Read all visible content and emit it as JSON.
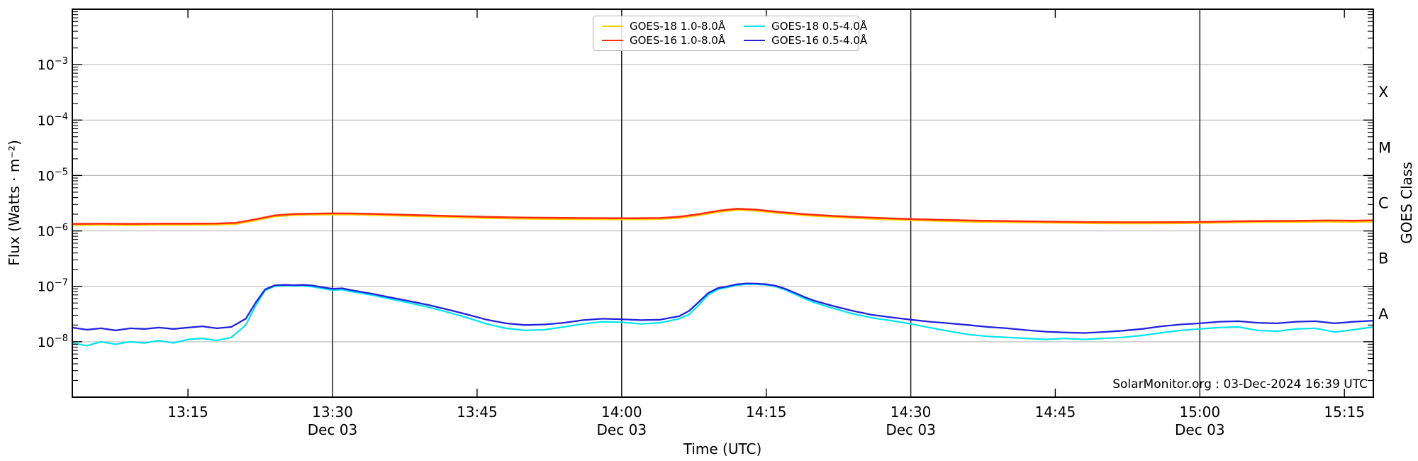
{
  "chart": {
    "kind": "GOES X-ray flux time series plot",
    "source_note": "SolarMonitor.org : 03-Dec-2024 16:39 UTC"
  },
  "chart_data": {
    "type": "line",
    "title": "",
    "watermark": "SolarMonitor.org : 03-Dec-2024 16:39 UTC",
    "x_axis": {
      "label": "Time (UTC)",
      "min": 3,
      "max": 138,
      "minutes_origin": "13:00 UTC, Dec 03",
      "start": "13:03",
      "end": "15:18",
      "date_label": "Dec 03",
      "ticks": [
        {
          "t": 15,
          "label": "13:15",
          "date": false
        },
        {
          "t": 30,
          "label": "13:30",
          "date": true
        },
        {
          "t": 45,
          "label": "13:45",
          "date": false
        },
        {
          "t": 60,
          "label": "14:00",
          "date": true
        },
        {
          "t": 75,
          "label": "14:15",
          "date": false
        },
        {
          "t": 90,
          "label": "14:30",
          "date": true
        },
        {
          "t": 105,
          "label": "14:45",
          "date": false
        },
        {
          "t": 120,
          "label": "15:00",
          "date": true
        },
        {
          "t": 135,
          "label": "15:15",
          "date": false
        }
      ]
    },
    "y_axis": {
      "label": "Flux (Watts · m⁻²)",
      "scale": "log",
      "min": 1e-09,
      "max": 0.01,
      "labeled_exponents": [
        -3,
        -4,
        -5,
        -6,
        -7,
        -8
      ],
      "grid": true
    },
    "right_axis": {
      "label": "GOES Class",
      "classes": [
        {
          "letter": "X",
          "from": 0.0001,
          "to": 0.001
        },
        {
          "letter": "M",
          "from": 1e-05,
          "to": 0.0001
        },
        {
          "letter": "C",
          "from": 1e-06,
          "to": 1e-05
        },
        {
          "letter": "B",
          "from": 1e-07,
          "to": 1e-06
        },
        {
          "letter": "A",
          "from": 1e-08,
          "to": 1e-07
        }
      ]
    },
    "legend_position": "top-center",
    "series": [
      {
        "name": "goes-18-long",
        "label": "GOES-18 1.0-8.0Å",
        "color": "#ffd000",
        "t": [
          3,
          6,
          9,
          12,
          15,
          18,
          20,
          22,
          24,
          26,
          28,
          30,
          32,
          34,
          37,
          40,
          43,
          46,
          49,
          52,
          55,
          58,
          61,
          64,
          66,
          68,
          70,
          72,
          74,
          76,
          79,
          82,
          85,
          88,
          91,
          94,
          97,
          100,
          103,
          106,
          109,
          112,
          115,
          118,
          121,
          124,
          127,
          130,
          133,
          136,
          138
        ],
        "flux": [
          1.27e-06,
          1.28e-06,
          1.27e-06,
          1.28e-06,
          1.28e-06,
          1.29e-06,
          1.33e-06,
          1.54e-06,
          1.81e-06,
          1.92e-06,
          1.95e-06,
          1.97e-06,
          1.96e-06,
          1.93e-06,
          1.87e-06,
          1.81e-06,
          1.75e-06,
          1.7e-06,
          1.66e-06,
          1.64e-06,
          1.62e-06,
          1.62e-06,
          1.61e-06,
          1.63e-06,
          1.71e-06,
          1.9e-06,
          2.19e-06,
          2.39e-06,
          2.3e-06,
          2.11e-06,
          1.9e-06,
          1.77e-06,
          1.67e-06,
          1.6e-06,
          1.54e-06,
          1.49e-06,
          1.45e-06,
          1.43e-06,
          1.41e-06,
          1.39e-06,
          1.37e-06,
          1.36e-06,
          1.36e-06,
          1.37e-06,
          1.39e-06,
          1.42e-06,
          1.44e-06,
          1.44e-06,
          1.46e-06,
          1.45e-06,
          1.47e-06
        ]
      },
      {
        "name": "goes-16-long",
        "label": "GOES-16 1.0-8.0Å",
        "color": "#ff2b0f",
        "t": [
          3,
          6,
          9,
          12,
          15,
          18,
          20,
          22,
          24,
          26,
          28,
          30,
          32,
          34,
          37,
          40,
          43,
          46,
          49,
          52,
          55,
          58,
          61,
          64,
          66,
          68,
          70,
          72,
          74,
          76,
          79,
          82,
          85,
          88,
          91,
          94,
          97,
          100,
          103,
          106,
          109,
          112,
          115,
          118,
          121,
          124,
          127,
          130,
          133,
          136,
          138
        ],
        "flux": [
          1.34e-06,
          1.35e-06,
          1.34e-06,
          1.35e-06,
          1.35e-06,
          1.36e-06,
          1.4e-06,
          1.62e-06,
          1.9e-06,
          2.02e-06,
          2.05e-06,
          2.07e-06,
          2.06e-06,
          2.03e-06,
          1.97e-06,
          1.9e-06,
          1.84e-06,
          1.79e-06,
          1.75e-06,
          1.73e-06,
          1.71e-06,
          1.7e-06,
          1.69e-06,
          1.71e-06,
          1.8e-06,
          2e-06,
          2.3e-06,
          2.52e-06,
          2.42e-06,
          2.22e-06,
          2e-06,
          1.86e-06,
          1.76e-06,
          1.68e-06,
          1.62e-06,
          1.57e-06,
          1.53e-06,
          1.5e-06,
          1.48e-06,
          1.46e-06,
          1.44e-06,
          1.43e-06,
          1.43e-06,
          1.44e-06,
          1.46e-06,
          1.49e-06,
          1.51e-06,
          1.52e-06,
          1.54e-06,
          1.53e-06,
          1.55e-06
        ]
      },
      {
        "name": "goes-18-short",
        "label": "GOES-18 0.5-4.0Å",
        "color": "#00e4ee",
        "t": [
          3,
          4.5,
          6,
          7.5,
          9,
          10.5,
          12,
          13.5,
          15,
          16.5,
          18,
          19.5,
          21,
          22,
          23,
          24,
          25,
          26,
          27,
          28,
          29,
          30,
          31,
          32,
          34,
          36,
          38,
          40,
          42,
          44,
          46,
          48,
          50,
          52,
          54,
          56,
          58,
          60,
          62,
          64,
          66,
          67,
          68,
          69,
          70,
          71,
          72,
          73,
          74,
          75,
          76,
          77,
          78,
          79,
          80,
          82,
          84,
          86,
          88,
          90,
          92,
          94,
          96,
          98,
          100,
          102,
          104,
          106,
          108,
          110,
          112,
          114,
          116,
          118,
          120,
          122,
          124,
          126,
          128,
          130,
          132,
          134,
          136,
          138
        ],
        "flux": [
          9.5e-09,
          8.5e-09,
          1e-08,
          9e-09,
          1e-08,
          9.5e-09,
          1.05e-08,
          9.5e-09,
          1.1e-08,
          1.15e-08,
          1.05e-08,
          1.2e-08,
          2e-08,
          4.4e-08,
          8.4e-08,
          1e-07,
          1.03e-07,
          1.02e-07,
          1.02e-07,
          9.8e-08,
          9.1e-08,
          8.5e-08,
          8.7e-08,
          8e-08,
          7e-08,
          5.9e-08,
          5e-08,
          4.2e-08,
          3.4e-08,
          2.7e-08,
          2.1e-08,
          1.75e-08,
          1.6e-08,
          1.65e-08,
          1.85e-08,
          2.1e-08,
          2.3e-08,
          2.25e-08,
          2.1e-08,
          2.2e-08,
          2.6e-08,
          3.1e-08,
          4.6e-08,
          7e-08,
          8.8e-08,
          9.6e-08,
          1.05e-07,
          1.1e-07,
          1.09e-07,
          1.06e-07,
          9.9e-08,
          8.6e-08,
          7.2e-08,
          6e-08,
          5.1e-08,
          4e-08,
          3.2e-08,
          2.7e-08,
          2.4e-08,
          2.1e-08,
          1.8e-08,
          1.55e-08,
          1.35e-08,
          1.25e-08,
          1.2e-08,
          1.15e-08,
          1.1e-08,
          1.15e-08,
          1.1e-08,
          1.15e-08,
          1.2e-08,
          1.3e-08,
          1.45e-08,
          1.6e-08,
          1.7e-08,
          1.8e-08,
          1.85e-08,
          1.6e-08,
          1.55e-08,
          1.7e-08,
          1.75e-08,
          1.5e-08,
          1.65e-08,
          1.85e-08
        ]
      },
      {
        "name": "goes-16-short",
        "label": "GOES-16 0.5-4.0Å",
        "color": "#2222dd",
        "t": [
          3,
          4.5,
          6,
          7.5,
          9,
          10.5,
          12,
          13.5,
          15,
          16.5,
          18,
          19.5,
          21,
          22,
          23,
          24,
          25,
          26,
          27,
          28,
          29,
          30,
          31,
          32,
          34,
          36,
          38,
          40,
          42,
          44,
          46,
          48,
          50,
          52,
          54,
          56,
          58,
          60,
          62,
          64,
          66,
          67,
          68,
          69,
          70,
          71,
          72,
          73,
          74,
          75,
          76,
          77,
          78,
          79,
          80,
          82,
          84,
          86,
          88,
          90,
          92,
          94,
          96,
          98,
          100,
          102,
          104,
          106,
          108,
          110,
          112,
          114,
          116,
          118,
          120,
          122,
          124,
          126,
          128,
          130,
          132,
          134,
          136,
          138
        ],
        "flux": [
          1.8e-08,
          1.65e-08,
          1.75e-08,
          1.6e-08,
          1.75e-08,
          1.7e-08,
          1.8e-08,
          1.7e-08,
          1.8e-08,
          1.9e-08,
          1.75e-08,
          1.85e-08,
          2.6e-08,
          5e-08,
          8.8e-08,
          1.04e-07,
          1.06e-07,
          1.05e-07,
          1.06e-07,
          1.03e-07,
          9.6e-08,
          9e-08,
          9.2e-08,
          8.5e-08,
          7.4e-08,
          6.3e-08,
          5.4e-08,
          4.6e-08,
          3.8e-08,
          3.1e-08,
          2.5e-08,
          2.15e-08,
          2e-08,
          2.05e-08,
          2.2e-08,
          2.45e-08,
          2.6e-08,
          2.55e-08,
          2.45e-08,
          2.5e-08,
          2.9e-08,
          3.6e-08,
          5.2e-08,
          7.6e-08,
          9.3e-08,
          1e-07,
          1.09e-07,
          1.13e-07,
          1.12e-07,
          1.09e-07,
          1.02e-07,
          9e-08,
          7.6e-08,
          6.4e-08,
          5.5e-08,
          4.4e-08,
          3.6e-08,
          3.05e-08,
          2.75e-08,
          2.5e-08,
          2.3e-08,
          2.15e-08,
          2e-08,
          1.85e-08,
          1.75e-08,
          1.62e-08,
          1.52e-08,
          1.47e-08,
          1.44e-08,
          1.5e-08,
          1.58e-08,
          1.7e-08,
          1.9e-08,
          2.05e-08,
          2.15e-08,
          2.3e-08,
          2.35e-08,
          2.2e-08,
          2.15e-08,
          2.3e-08,
          2.35e-08,
          2.15e-08,
          2.3e-08,
          2.4e-08
        ]
      }
    ],
    "v_date_lines_at": [
      30,
      60,
      90,
      120
    ],
    "colors": {
      "grid": "#b9b9b9",
      "date_line": "#1c1c1c",
      "spine": "#000000"
    }
  }
}
